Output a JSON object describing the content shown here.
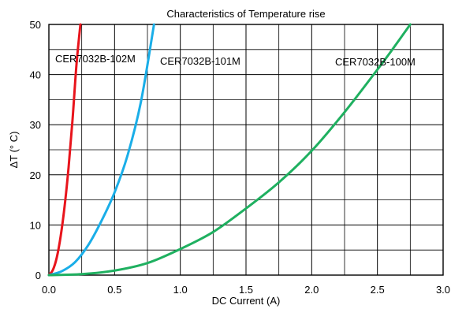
{
  "chart_data": {
    "type": "line",
    "title": "Characteristics of Temperature rise",
    "xlabel": "DC Current (A)",
    "ylabel": "ΔT (° C)",
    "xlim": [
      0,
      3.0
    ],
    "ylim": [
      0,
      50
    ],
    "x_ticks": [
      "0.0",
      "0.5",
      "1.0",
      "1.5",
      "2.0",
      "2.5",
      "3.0"
    ],
    "y_ticks": [
      "0",
      "10",
      "20",
      "30",
      "40",
      "50"
    ],
    "grid": true,
    "series": [
      {
        "name": "CER7032B-102M",
        "color": "#e8141c",
        "x": [
          0.0,
          0.03,
          0.06,
          0.09,
          0.12,
          0.15,
          0.18,
          0.21,
          0.24
        ],
        "y": [
          0.0,
          1.0,
          3.5,
          7.8,
          13.8,
          21.5,
          31.0,
          42.0,
          50.0
        ]
      },
      {
        "name": "CER7032B-101M",
        "color": "#1aaee8",
        "x": [
          0.0,
          0.1,
          0.2,
          0.3,
          0.4,
          0.5,
          0.6,
          0.7,
          0.8
        ],
        "y": [
          0.0,
          0.8,
          2.6,
          6.0,
          10.8,
          16.5,
          24.0,
          34.5,
          50.0
        ]
      },
      {
        "name": "CER7032B-100M",
        "color": "#1fb060",
        "x": [
          0.0,
          0.25,
          0.5,
          0.75,
          1.0,
          1.25,
          1.5,
          1.75,
          2.0,
          2.25,
          2.5,
          2.6,
          2.75
        ],
        "y": [
          0.0,
          0.2,
          0.9,
          2.4,
          5.2,
          8.6,
          13.3,
          18.5,
          24.8,
          32.5,
          41.0,
          44.5,
          50.0
        ]
      }
    ]
  }
}
